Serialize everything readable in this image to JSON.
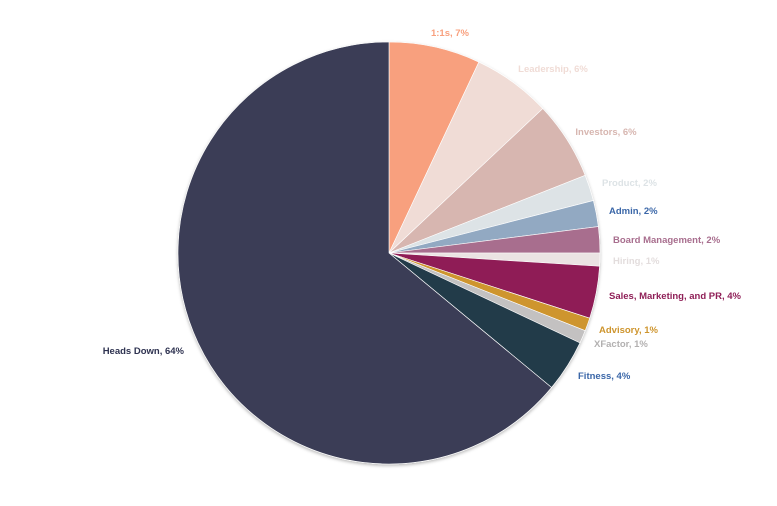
{
  "chart_data": {
    "type": "pie",
    "title": "",
    "start_angle_deg": 0,
    "direction": "clockwise",
    "legend": "none",
    "slices": [
      {
        "label": "1:1s",
        "value": 7,
        "data_label": "1:1s, 7%",
        "color": "#F8A07E",
        "label_color": "#F8A07E"
      },
      {
        "label": "Leadership",
        "value": 6,
        "data_label": "Leadership, 6%",
        "color": "#F0DCD6",
        "label_color": "#F0DCD6"
      },
      {
        "label": "Investors",
        "value": 6,
        "data_label": "Investors, 6%",
        "color": "#D7B6B0",
        "label_color": "#D7B6B0"
      },
      {
        "label": "Product",
        "value": 2,
        "data_label": "Product, 2%",
        "color": "#DDE3E6",
        "label_color": "#DDE3E6"
      },
      {
        "label": "Admin",
        "value": 2,
        "data_label": "Admin, 2%",
        "color": "#92A9C2",
        "label_color": "#3B67A8"
      },
      {
        "label": "Board Management",
        "value": 2,
        "data_label": "Board Management, 2%",
        "color": "#A86E8E",
        "label_color": "#A86E8E"
      },
      {
        "label": "Hiring",
        "value": 1,
        "data_label": "Hiring, 1%",
        "color": "#EBE3E3",
        "label_color": "#E3DDDD"
      },
      {
        "label": "Sales, Marketing, and PR",
        "value": 4,
        "data_label": "Sales, Marketing, and PR, 4%",
        "color": "#8F1F57",
        "label_color": "#8F1F57"
      },
      {
        "label": "Advisory",
        "value": 1,
        "data_label": "Advisory, 1%",
        "color": "#CE952E",
        "label_color": "#CE952E"
      },
      {
        "label": "XFactor",
        "value": 1,
        "data_label": "XFactor, 1%",
        "color": "#C3C1C1",
        "label_color": "#B2B0B0"
      },
      {
        "label": "Fitness",
        "value": 4,
        "data_label": "Fitness, 4%",
        "color": "#243A4A",
        "label_color": "#3B67A8"
      },
      {
        "label": "Heads Down",
        "value": 64,
        "data_label": "Heads Down, 64%",
        "color": "#3A3E56",
        "label_color": "#2E3250"
      }
    ]
  }
}
